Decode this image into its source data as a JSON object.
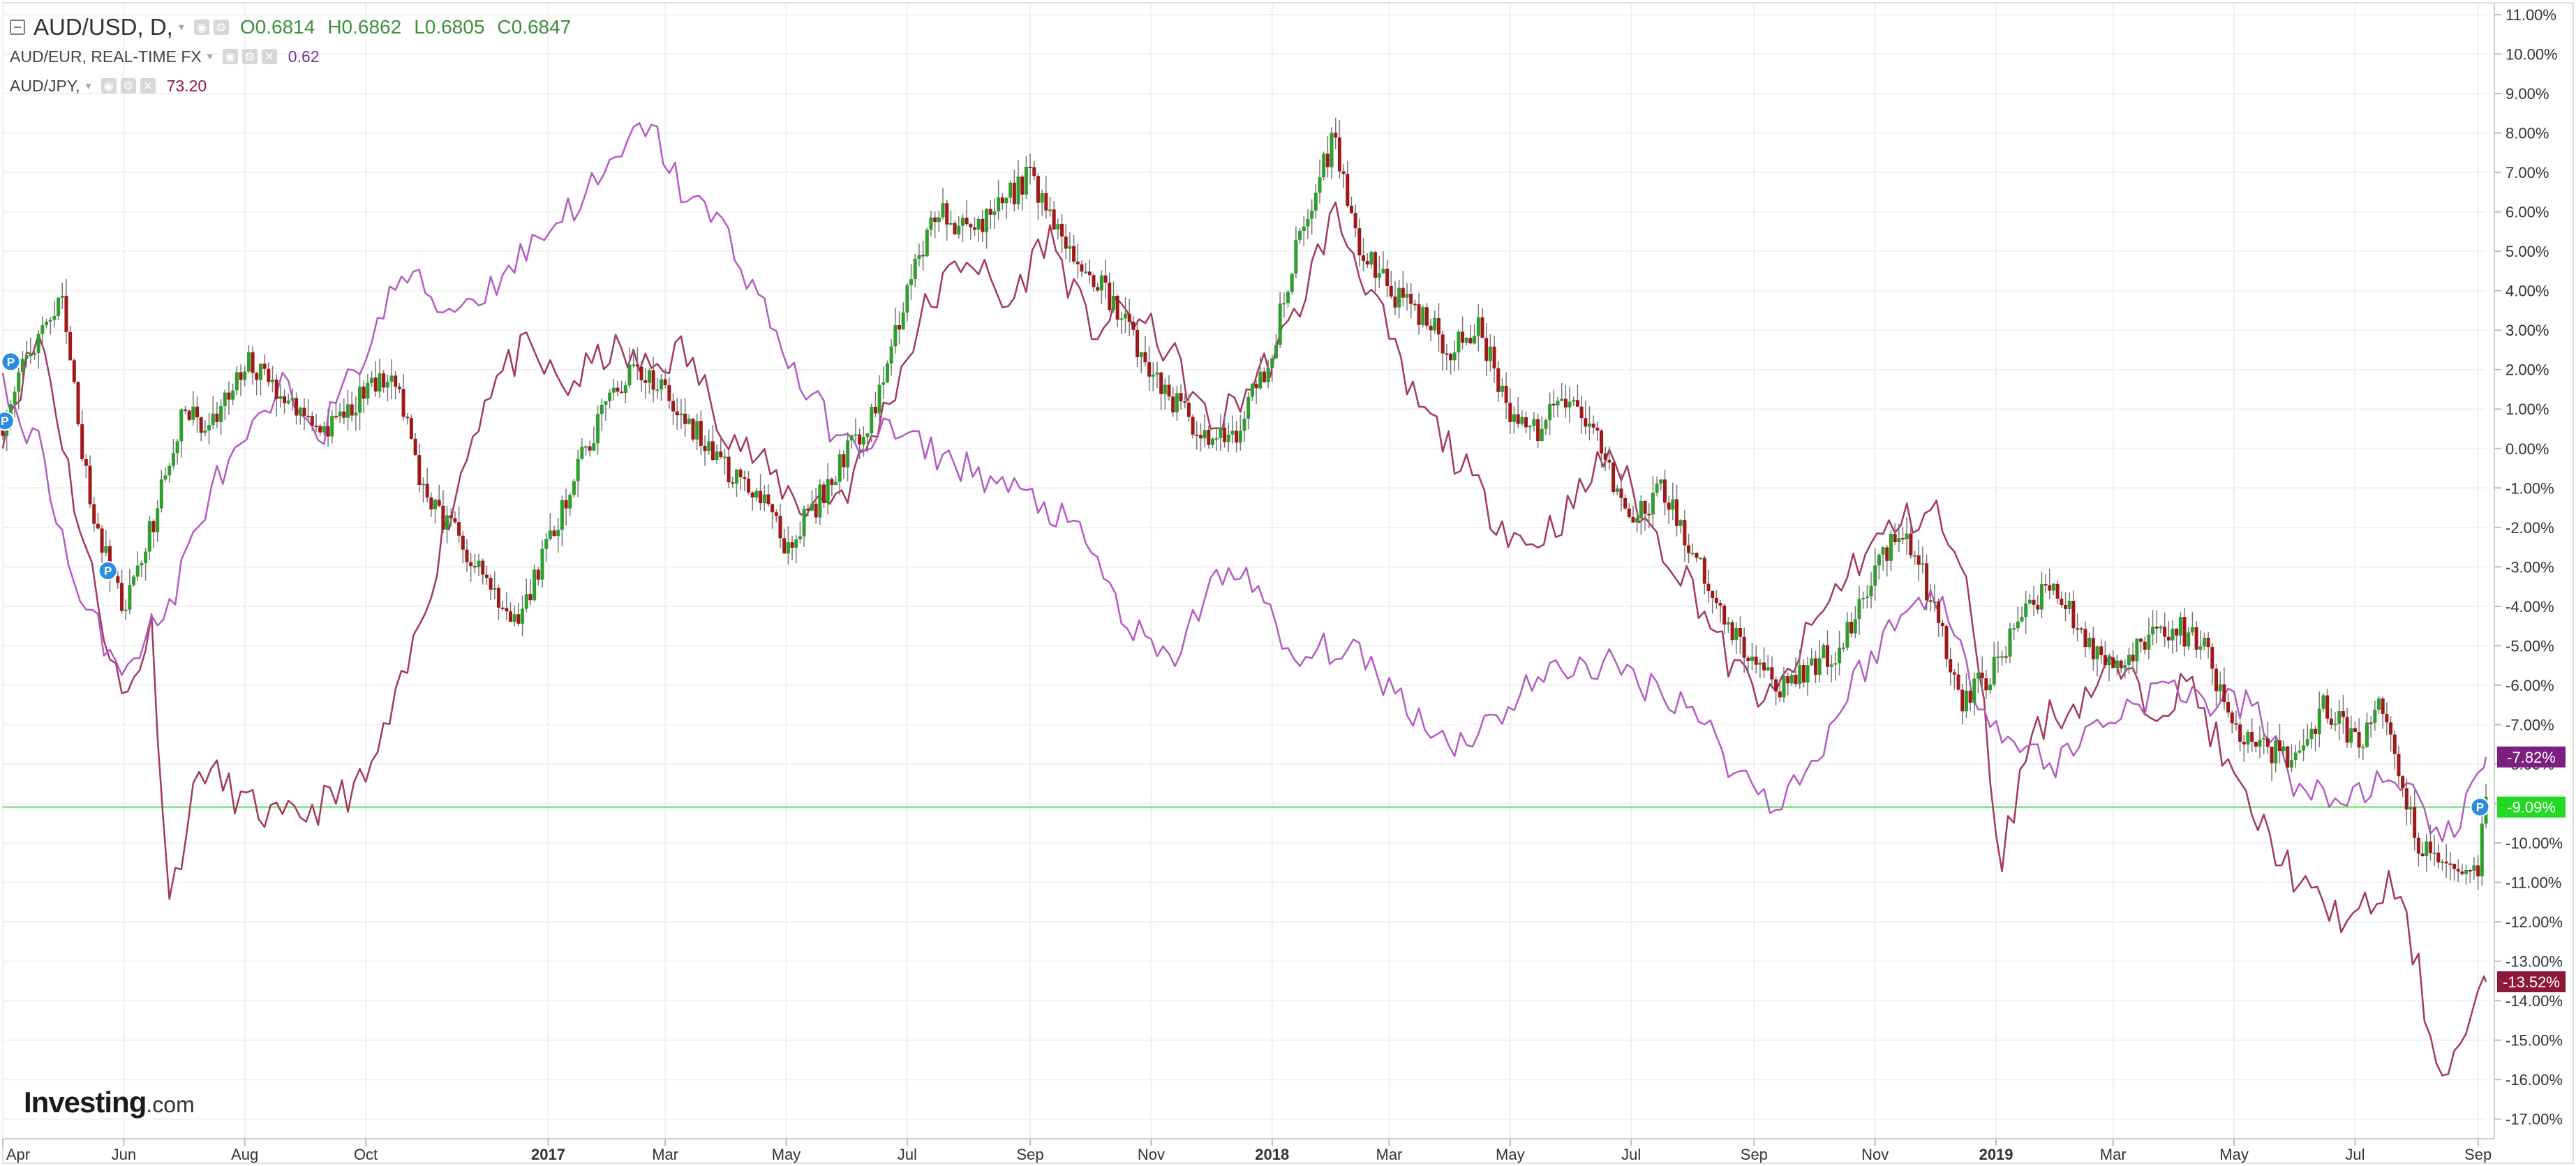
{
  "legend": {
    "main_symbol": "AUD/USD, D,",
    "main_ohlc": {
      "open": "O0.6814",
      "high": "H0.6862",
      "low": "L0.6805",
      "close": "C0.6847"
    },
    "series2_symbol": "AUD/EUR, REAL-TIME FX",
    "series2_value": "0.62",
    "series3_symbol": "AUD/JPY,",
    "series3_value": "73.20"
  },
  "logo": {
    "main": "Investing",
    "domain": ".com"
  },
  "colors": {
    "candle_up": "#2f9e2f",
    "candle_down": "#a01919",
    "wick": "#777777",
    "aud_eur_line": "#b35cc4",
    "aud_jpy_line": "#a3395f",
    "baseline": "#8ee88e",
    "grid": "#f1f1f1"
  },
  "icons": [
    "collapse-icon",
    "dropdown-caret-icon",
    "settings-icon",
    "visibility-icon",
    "close-icon",
    "price-marker-icon"
  ],
  "chart_data": {
    "type": "line",
    "title": "AUD/USD, D,",
    "x_range": [
      "2016-04-01",
      "2019-09-05"
    ],
    "x_tick_labels": [
      "Apr",
      "Jun",
      "Aug",
      "Oct",
      "2017",
      "Mar",
      "May",
      "Jul",
      "Sep",
      "Nov",
      "2018",
      "Mar",
      "May",
      "Jul",
      "Sep",
      "Nov",
      "2019",
      "Mar",
      "May",
      "Jul",
      "Sep"
    ],
    "x_tick_dates": [
      "2016-04-01",
      "2016-06-01",
      "2016-08-01",
      "2016-10-01",
      "2017-01-01",
      "2017-03-01",
      "2017-05-01",
      "2017-07-01",
      "2017-09-01",
      "2017-11-01",
      "2018-01-01",
      "2018-03-01",
      "2018-05-01",
      "2018-07-01",
      "2018-09-01",
      "2018-11-01",
      "2019-01-01",
      "2019-03-01",
      "2019-05-01",
      "2019-07-01",
      "2019-09-01"
    ],
    "bold_tick_labels": [
      "2017",
      "2018",
      "2019"
    ],
    "y_ticks": [
      11,
      10,
      9,
      8,
      7,
      6,
      5,
      4,
      3,
      2,
      1,
      0,
      -1,
      -2,
      -3,
      -4,
      -5,
      -6,
      -7,
      -8,
      -9,
      -10,
      -11,
      -12,
      -13,
      -14,
      -15,
      -16,
      -17
    ],
    "y_tick_labels": [
      "11.00%",
      "10.00%",
      "9.00%",
      "8.00%",
      "7.00%",
      "6.00%",
      "5.00%",
      "4.00%",
      "3.00%",
      "2.00%",
      "1.00%",
      "0.00%",
      "-1.00%",
      "-2.00%",
      "-3.00%",
      "-4.00%",
      "-5.00%",
      "-6.00%",
      "-7.00%",
      "-8.00%",
      "-9.00%",
      "-10.00%",
      "-11.00%",
      "-12.00%",
      "-13.00%",
      "-14.00%",
      "-15.00%",
      "-16.00%",
      "-17.00%"
    ],
    "ylim": [
      -17.5,
      11.3
    ],
    "y_scale": "percent",
    "grid": true,
    "baseline_value": -9.09,
    "last_value_tags": [
      {
        "value": -7.82,
        "label": "-7.82%",
        "series": "AUD/EUR, REAL-TIME FX"
      },
      {
        "value": -9.09,
        "label": "-9.09%",
        "series": "AUD/USD, D,"
      },
      {
        "value": -13.52,
        "label": "-13.52%",
        "series": "AUD/JPY,"
      }
    ],
    "markers": [
      {
        "date": "2016-04-05",
        "value": 2.2,
        "label": "P"
      },
      {
        "date": "2016-04-02",
        "value": 0.7,
        "label": "P"
      },
      {
        "date": "2016-05-24",
        "value": -3.1,
        "label": "P"
      },
      {
        "date": "2019-09-02",
        "value": -9.09,
        "label": "P"
      }
    ],
    "series": [
      {
        "name": "AUD/USD, D,",
        "style": "candles",
        "x": [
          "2016-04-01",
          "2016-04-15",
          "2016-05-01",
          "2016-05-15",
          "2016-06-01",
          "2016-06-15",
          "2016-07-01",
          "2016-07-15",
          "2016-08-01",
          "2016-08-15",
          "2016-09-01",
          "2016-09-15",
          "2016-10-01",
          "2016-10-15",
          "2016-11-01",
          "2016-11-15",
          "2016-12-01",
          "2016-12-15",
          "2017-01-01",
          "2017-01-15",
          "2017-02-01",
          "2017-02-15",
          "2017-03-01",
          "2017-03-15",
          "2017-04-01",
          "2017-04-15",
          "2017-05-01",
          "2017-05-15",
          "2017-06-01",
          "2017-06-15",
          "2017-07-01",
          "2017-07-15",
          "2017-08-01",
          "2017-08-15",
          "2017-09-01",
          "2017-09-15",
          "2017-10-01",
          "2017-10-15",
          "2017-11-01",
          "2017-11-15",
          "2017-12-01",
          "2017-12-15",
          "2018-01-01",
          "2018-01-15",
          "2018-02-01",
          "2018-02-15",
          "2018-03-01",
          "2018-03-15",
          "2018-04-01",
          "2018-04-15",
          "2018-05-01",
          "2018-05-15",
          "2018-06-01",
          "2018-06-15",
          "2018-07-01",
          "2018-07-15",
          "2018-08-01",
          "2018-08-15",
          "2018-09-01",
          "2018-09-15",
          "2018-10-01",
          "2018-10-15",
          "2018-11-01",
          "2018-11-15",
          "2018-12-01",
          "2018-12-15",
          "2019-01-01",
          "2019-01-15",
          "2019-02-01",
          "2019-02-15",
          "2019-03-01",
          "2019-03-15",
          "2019-04-01",
          "2019-04-15",
          "2019-05-01",
          "2019-05-15",
          "2019-06-01",
          "2019-06-15",
          "2019-07-01",
          "2019-07-15",
          "2019-08-01",
          "2019-08-15",
          "2019-09-01",
          "2019-09-05"
        ],
        "values": [
          0.5,
          2.5,
          3.8,
          -1.5,
          -4.0,
          -2.0,
          1.0,
          0.5,
          2.3,
          1.5,
          1.0,
          0.5,
          1.5,
          2.0,
          -1.5,
          -2.0,
          -3.5,
          -4.5,
          -2.5,
          -0.5,
          1.2,
          2.0,
          1.5,
          0.5,
          -0.5,
          -1.0,
          -2.5,
          -1.5,
          0.0,
          1.0,
          4.0,
          6.0,
          5.5,
          6.0,
          7.0,
          5.5,
          4.5,
          3.5,
          2.0,
          1.0,
          0.0,
          0.5,
          2.5,
          5.5,
          7.8,
          5.0,
          4.0,
          3.5,
          2.5,
          3.0,
          1.0,
          0.5,
          1.5,
          0.0,
          -2.0,
          -1.0,
          -2.5,
          -4.0,
          -5.5,
          -6.0,
          -5.5,
          -5.0,
          -3.0,
          -2.0,
          -4.0,
          -6.5,
          -5.5,
          -4.0,
          -3.5,
          -5.0,
          -5.5,
          -5.0,
          -4.5,
          -5.0,
          -7.0,
          -7.5,
          -8.0,
          -6.5,
          -7.5,
          -6.5,
          -10.0,
          -10.5,
          -10.5,
          -9.09
        ]
      },
      {
        "name": "AUD/EUR, REAL-TIME FX",
        "style": "line",
        "x": [
          "2016-04-01",
          "2016-04-20",
          "2016-05-10",
          "2016-06-01",
          "2016-06-24",
          "2016-07-15",
          "2016-08-01",
          "2016-08-20",
          "2016-09-10",
          "2016-10-01",
          "2016-10-20",
          "2016-11-10",
          "2016-12-01",
          "2016-12-20",
          "2017-01-10",
          "2017-02-01",
          "2017-02-20",
          "2017-03-10",
          "2017-04-01",
          "2017-04-20",
          "2017-05-10",
          "2017-06-01",
          "2017-06-20",
          "2017-07-10",
          "2017-08-01",
          "2017-08-20",
          "2017-09-10",
          "2017-10-01",
          "2017-10-20",
          "2017-11-10",
          "2017-12-01",
          "2017-12-20",
          "2018-01-10",
          "2018-02-01",
          "2018-02-20",
          "2018-03-10",
          "2018-04-01",
          "2018-04-20",
          "2018-05-10",
          "2018-06-01",
          "2018-06-20",
          "2018-07-10",
          "2018-08-01",
          "2018-08-20",
          "2018-09-10",
          "2018-10-01",
          "2018-10-20",
          "2018-11-10",
          "2018-12-01",
          "2018-12-20",
          "2019-01-10",
          "2019-02-01",
          "2019-02-20",
          "2019-03-10",
          "2019-04-01",
          "2019-04-20",
          "2019-05-10",
          "2019-06-01",
          "2019-06-20",
          "2019-07-10",
          "2019-08-01",
          "2019-08-20",
          "2019-09-05"
        ],
        "values": [
          1.5,
          0.0,
          -4.0,
          -5.5,
          -4.0,
          -1.0,
          0.0,
          1.5,
          0.5,
          2.5,
          4.5,
          3.5,
          4.0,
          5.0,
          6.0,
          7.0,
          8.3,
          6.5,
          5.5,
          3.5,
          1.5,
          0.0,
          0.5,
          0.0,
          -0.5,
          -1.0,
          -1.5,
          -2.5,
          -4.5,
          -5.5,
          -3.5,
          -3.0,
          -5.5,
          -5.0,
          -5.5,
          -6.5,
          -7.5,
          -7.0,
          -6.0,
          -5.5,
          -5.5,
          -6.0,
          -6.5,
          -8.0,
          -9.0,
          -8.0,
          -6.0,
          -4.5,
          -3.5,
          -6.0,
          -7.5,
          -8.0,
          -7.0,
          -6.5,
          -6.0,
          -6.5,
          -6.5,
          -8.5,
          -9.0,
          -8.5,
          -9.0,
          -10.0,
          -7.82
        ]
      },
      {
        "name": "AUD/JPY,",
        "style": "line",
        "x": [
          "2016-04-01",
          "2016-04-20",
          "2016-05-10",
          "2016-06-01",
          "2016-06-15",
          "2016-06-24",
          "2016-07-10",
          "2016-08-01",
          "2016-08-20",
          "2016-09-10",
          "2016-10-01",
          "2016-10-20",
          "2016-11-10",
          "2016-12-01",
          "2016-12-20",
          "2017-01-10",
          "2017-02-01",
          "2017-02-20",
          "2017-03-10",
          "2017-04-01",
          "2017-04-20",
          "2017-05-10",
          "2017-06-01",
          "2017-06-20",
          "2017-07-10",
          "2017-08-01",
          "2017-08-20",
          "2017-09-10",
          "2017-10-01",
          "2017-10-20",
          "2017-11-10",
          "2017-12-01",
          "2017-12-20",
          "2018-01-10",
          "2018-02-01",
          "2018-02-20",
          "2018-03-10",
          "2018-04-01",
          "2018-04-20",
          "2018-05-10",
          "2018-06-01",
          "2018-06-20",
          "2018-07-10",
          "2018-08-01",
          "2018-08-20",
          "2018-09-10",
          "2018-10-01",
          "2018-10-20",
          "2018-11-10",
          "2018-12-01",
          "2018-12-20",
          "2019-01-03",
          "2019-01-20",
          "2019-02-10",
          "2019-03-01",
          "2019-03-20",
          "2019-04-10",
          "2019-05-01",
          "2019-05-20",
          "2019-06-10",
          "2019-07-01",
          "2019-07-20",
          "2019-08-01",
          "2019-08-10",
          "2019-08-20",
          "2019-09-05"
        ],
        "values": [
          0.5,
          3.0,
          -2.0,
          -6.5,
          -4.5,
          -11.5,
          -8.0,
          -9.0,
          -9.5,
          -9.0,
          -8.5,
          -6.0,
          -2.0,
          1.5,
          2.5,
          1.5,
          2.5,
          2.0,
          2.5,
          0.5,
          -0.5,
          -1.5,
          -1.0,
          1.0,
          3.5,
          5.0,
          3.5,
          5.5,
          3.0,
          3.5,
          2.5,
          0.5,
          1.5,
          3.0,
          6.0,
          4.0,
          1.5,
          0.0,
          -1.5,
          -2.5,
          -1.5,
          0.0,
          -2.0,
          -3.5,
          -5.5,
          -6.5,
          -4.5,
          -3.0,
          -2.0,
          -1.5,
          -4.0,
          -10.5,
          -7.0,
          -6.5,
          -5.5,
          -6.5,
          -6.0,
          -8.5,
          -10.0,
          -11.5,
          -12.0,
          -11.0,
          -13.0,
          -15.5,
          -15.5,
          -13.52
        ]
      }
    ]
  }
}
